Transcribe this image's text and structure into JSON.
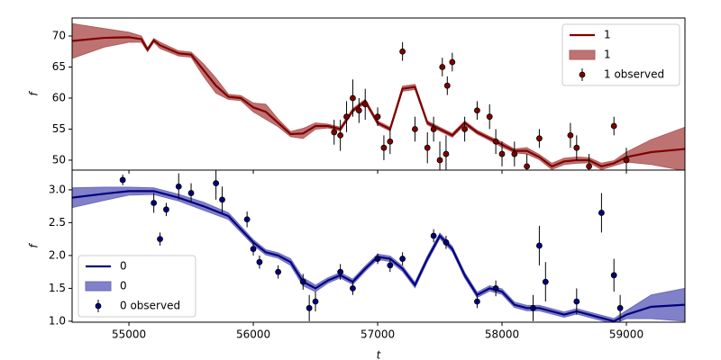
{
  "chart_data": [
    {
      "type": "line",
      "ylabel": "f",
      "xlim": [
        54543,
        59471
      ],
      "ylim": [
        48.4,
        72.9
      ],
      "xticks": [
        55000,
        56000,
        57000,
        58000,
        59000
      ],
      "show_xtick_labels": false,
      "yticks": [
        50,
        55,
        60,
        65,
        70
      ],
      "legend": "upper right",
      "series": [
        {
          "kind": "line",
          "name": "1",
          "color": "#800000",
          "x": [
            54543,
            54800,
            55000,
            55100,
            55150,
            55200,
            55250,
            55400,
            55500,
            55600,
            55700,
            55800,
            55900,
            56000,
            56100,
            56200,
            56300,
            56400,
            56500,
            56600,
            56700,
            56800,
            56900,
            57000,
            57100,
            57200,
            57300,
            57400,
            57500,
            57600,
            57700,
            57800,
            57900,
            58000,
            58100,
            58200,
            58300,
            58400,
            58500,
            58600,
            58700,
            58800,
            58900,
            59000,
            59200,
            59471
          ],
          "values": [
            69.2,
            69.7,
            69.8,
            69.5,
            67.8,
            69.3,
            68.5,
            67.2,
            67,
            64.5,
            62,
            60.2,
            60,
            58.5,
            57.8,
            56,
            54.2,
            54.3,
            55.5,
            55.5,
            55,
            58,
            59.5,
            56,
            55,
            61.5,
            61.8,
            56,
            55,
            54,
            56,
            54.5,
            53.5,
            52.5,
            51.5,
            51.5,
            50.5,
            49,
            49.8,
            50,
            50,
            49,
            49.5,
            50.5,
            51.3,
            51.8
          ]
        },
        {
          "kind": "band",
          "name": "1",
          "color": "#b35b5b",
          "x": [
            54543,
            54800,
            55000,
            55100,
            55150,
            55200,
            55250,
            55400,
            55500,
            55600,
            55700,
            55800,
            55900,
            56000,
            56100,
            56200,
            56300,
            56400,
            56500,
            56600,
            56700,
            56800,
            56900,
            57000,
            57100,
            57200,
            57300,
            57400,
            57500,
            57600,
            57700,
            57800,
            57900,
            58000,
            58100,
            58200,
            58300,
            58400,
            58500,
            58600,
            58700,
            58800,
            58900,
            59000,
            59200,
            59471
          ],
          "lower": [
            66.4,
            68.2,
            69.0,
            69.0,
            67.5,
            69.0,
            68.0,
            66.8,
            66.6,
            63.5,
            60.8,
            59.8,
            59.6,
            57.8,
            56.6,
            55.4,
            53.8,
            53.5,
            55.0,
            55.2,
            54.7,
            57.7,
            59.2,
            55.7,
            54.7,
            61.1,
            61.4,
            55.7,
            54.7,
            53.7,
            55.7,
            54.2,
            53.2,
            52.1,
            51.2,
            51.0,
            50.1,
            48.5,
            49.3,
            49.5,
            49.6,
            48.5,
            49.1,
            49.7,
            49.3,
            48.3
          ],
          "upper": [
            72.0,
            71.2,
            70.6,
            70.0,
            68.1,
            69.6,
            69.0,
            67.6,
            67.4,
            65.5,
            63.2,
            60.6,
            60.4,
            59.2,
            59.0,
            56.6,
            54.6,
            55.1,
            56.0,
            55.8,
            55.3,
            58.3,
            59.8,
            56.3,
            55.3,
            61.9,
            62.2,
            56.3,
            55.3,
            54.3,
            56.3,
            54.8,
            53.8,
            52.9,
            51.8,
            52.0,
            50.9,
            49.5,
            50.3,
            50.5,
            50.4,
            49.5,
            49.9,
            51.3,
            53.3,
            55.3
          ]
        },
        {
          "kind": "errorbar",
          "name": "1 observed",
          "color": "#800000",
          "x": [
            56650,
            56700,
            56750,
            56800,
            56850,
            56900,
            57000,
            57050,
            57100,
            57200,
            57300,
            57400,
            57450,
            57500,
            57520,
            57550,
            57560,
            57600,
            57700,
            57800,
            57900,
            57950,
            58000,
            58100,
            58200,
            58300,
            58550,
            58600,
            58700,
            58900,
            59000
          ],
          "values": [
            54.5,
            54,
            57,
            60,
            58,
            59,
            57,
            52,
            53,
            67.5,
            55,
            52,
            55,
            50,
            65,
            51,
            62,
            65.8,
            55,
            58,
            57,
            53,
            51,
            51,
            49,
            53.5,
            54,
            52,
            49,
            55.5,
            50
          ],
          "errors": [
            2,
            2.5,
            2.5,
            3,
            2,
            2.5,
            1.5,
            2,
            2,
            1.5,
            2,
            2.5,
            2,
            3,
            1.5,
            3,
            1.5,
            1.5,
            2,
            1.5,
            2,
            2,
            2,
            2,
            2,
            1.5,
            2,
            2,
            2,
            1.5,
            2
          ]
        }
      ]
    },
    {
      "type": "line",
      "xlabel": "t",
      "ylabel": "f",
      "xlim": [
        54543,
        59471
      ],
      "ylim": [
        0.985,
        3.3
      ],
      "xticks": [
        55000,
        56000,
        57000,
        58000,
        59000
      ],
      "show_xtick_labels": true,
      "yticks": [
        {
          "value": 1.0,
          "label": "1.0"
        },
        1.5,
        {
          "value": 2.0,
          "label": "2.0"
        },
        2.5,
        {
          "value": 3.0,
          "label": "3.0"
        }
      ],
      "legend": "lower left",
      "series": [
        {
          "kind": "line",
          "name": "0",
          "color": "#000080",
          "x": [
            54543,
            54800,
            55000,
            55200,
            55400,
            55600,
            55800,
            56000,
            56100,
            56200,
            56300,
            56400,
            56500,
            56600,
            56700,
            56800,
            56900,
            57000,
            57100,
            57200,
            57300,
            57400,
            57500,
            57600,
            57700,
            57800,
            57900,
            58000,
            58100,
            58200,
            58300,
            58400,
            58500,
            58600,
            58700,
            58800,
            58900,
            59000,
            59200,
            59471
          ],
          "values": [
            2.88,
            2.94,
            2.98,
            2.98,
            2.88,
            2.75,
            2.6,
            2.2,
            2.05,
            2.0,
            1.9,
            1.6,
            1.5,
            1.62,
            1.7,
            1.6,
            1.8,
            1.98,
            1.95,
            1.8,
            1.55,
            1.95,
            2.3,
            2.1,
            1.7,
            1.4,
            1.5,
            1.45,
            1.25,
            1.2,
            1.2,
            1.15,
            1.1,
            1.15,
            1.1,
            1.05,
            1.0,
            1.1,
            1.22,
            1.25
          ]
        },
        {
          "kind": "band",
          "name": "0",
          "color": "#6b6bbf",
          "x": [
            54543,
            54800,
            55000,
            55200,
            55400,
            55600,
            55800,
            56000,
            56100,
            56200,
            56300,
            56400,
            56500,
            56600,
            56700,
            56800,
            56900,
            57000,
            57100,
            57200,
            57300,
            57400,
            57500,
            57600,
            57700,
            57800,
            57900,
            58000,
            58100,
            58200,
            58300,
            58400,
            58500,
            58600,
            58700,
            58800,
            58900,
            59000,
            59200,
            59471
          ],
          "lower": [
            2.73,
            2.84,
            2.92,
            2.93,
            2.83,
            2.69,
            2.55,
            2.16,
            2.01,
            1.96,
            1.85,
            1.54,
            1.45,
            1.58,
            1.66,
            1.56,
            1.76,
            1.94,
            1.91,
            1.76,
            1.51,
            1.91,
            2.26,
            2.06,
            1.66,
            1.36,
            1.46,
            1.41,
            1.21,
            1.16,
            1.16,
            1.11,
            1.06,
            1.11,
            1.06,
            1.01,
            0.96,
            1.04,
            1.04,
            1.0
          ],
          "upper": [
            3.03,
            3.04,
            3.04,
            3.03,
            2.93,
            2.81,
            2.65,
            2.24,
            2.09,
            2.04,
            1.95,
            1.66,
            1.55,
            1.66,
            1.74,
            1.64,
            1.84,
            2.02,
            1.99,
            1.84,
            1.59,
            1.99,
            2.34,
            2.14,
            1.74,
            1.44,
            1.54,
            1.49,
            1.29,
            1.24,
            1.24,
            1.19,
            1.14,
            1.19,
            1.14,
            1.09,
            1.04,
            1.16,
            1.4,
            1.5
          ]
        },
        {
          "kind": "errorbar",
          "name": "0 observed",
          "color": "#000080",
          "x": [
            54950,
            55200,
            55250,
            55300,
            55400,
            55500,
            55700,
            55750,
            55950,
            56000,
            56050,
            56200,
            56400,
            56450,
            56500,
            56700,
            56800,
            57000,
            57100,
            57200,
            57450,
            57550,
            57800,
            57950,
            58250,
            58300,
            58350,
            58600,
            58800,
            58900,
            58950
          ],
          "values": [
            3.15,
            2.8,
            2.25,
            2.7,
            3.05,
            2.95,
            3.1,
            2.85,
            2.55,
            2.1,
            1.9,
            1.75,
            1.6,
            1.2,
            1.3,
            1.75,
            1.5,
            1.95,
            1.85,
            1.95,
            2.3,
            2.2,
            1.3,
            1.5,
            1.2,
            2.15,
            1.6,
            1.3,
            2.65,
            1.7,
            1.2
          ],
          "errors": [
            0.08,
            0.15,
            0.1,
            0.1,
            0.2,
            0.15,
            0.25,
            0.2,
            0.12,
            0.1,
            0.1,
            0.1,
            0.12,
            0.2,
            0.15,
            0.12,
            0.1,
            0.08,
            0.1,
            0.1,
            0.1,
            0.1,
            0.1,
            0.12,
            0.2,
            0.3,
            0.3,
            0.2,
            0.3,
            0.25,
            0.2
          ]
        }
      ]
    }
  ]
}
